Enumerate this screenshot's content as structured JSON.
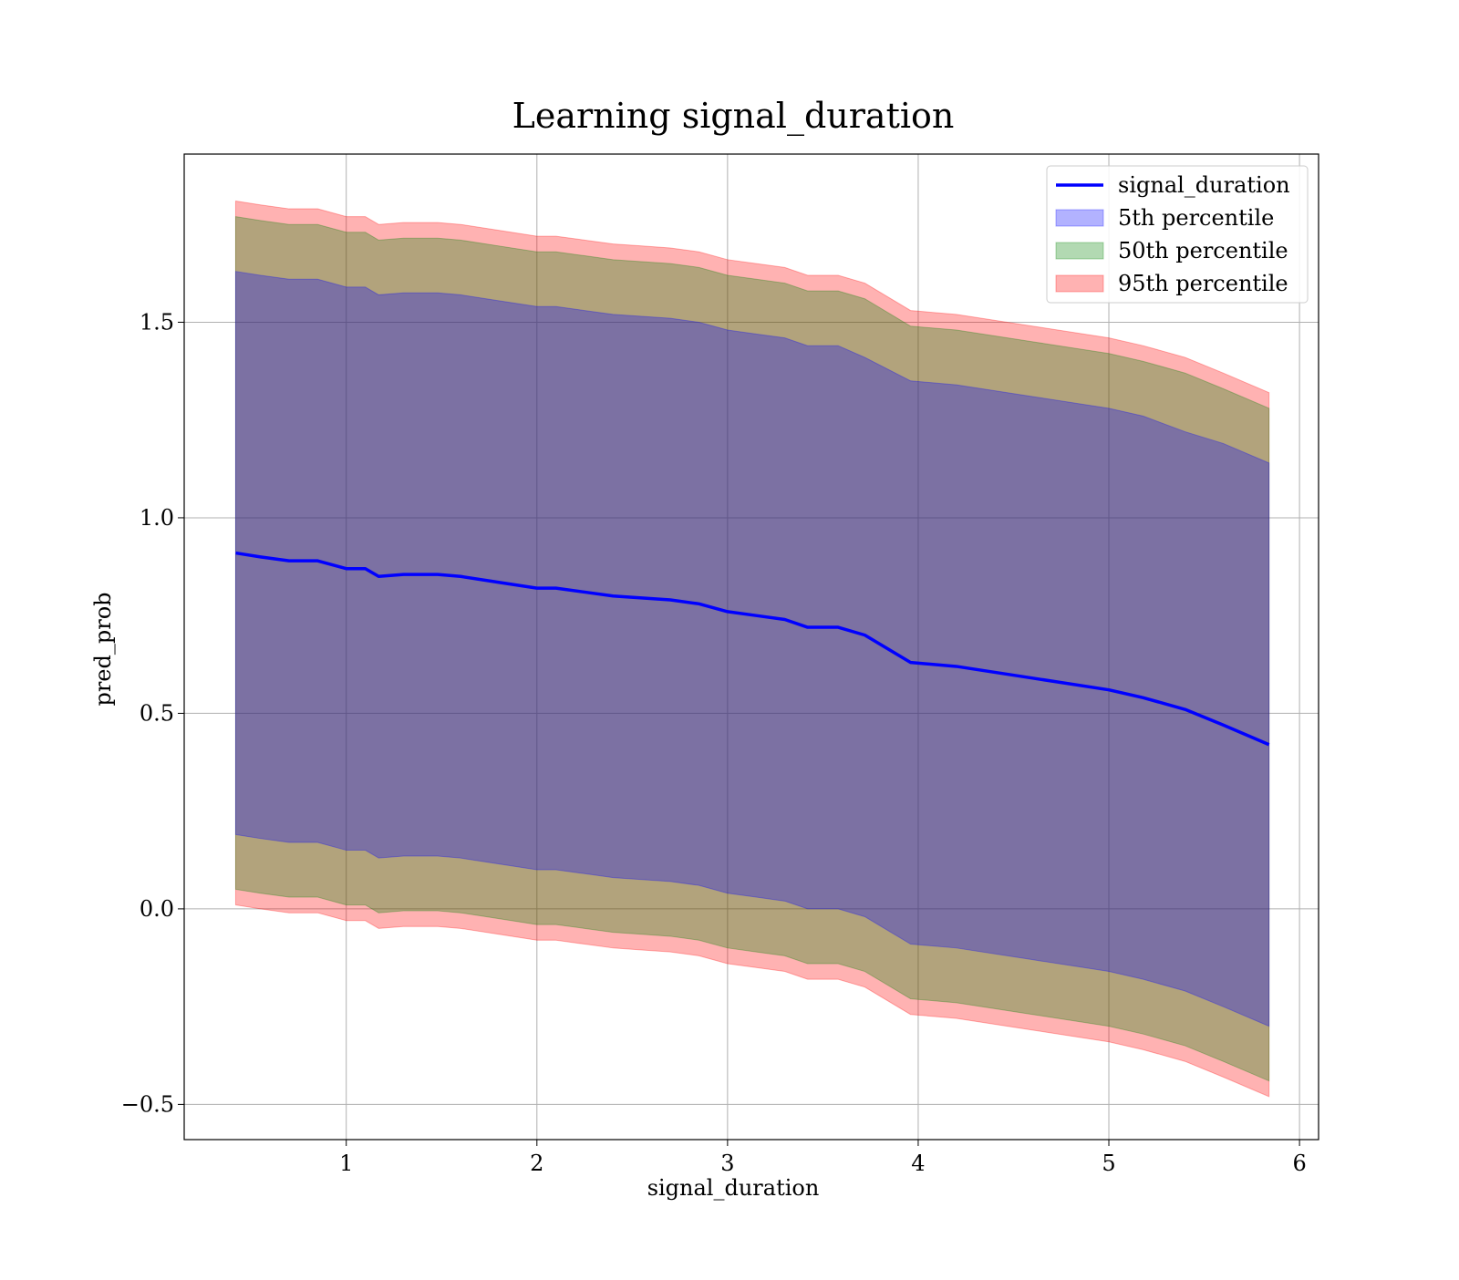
{
  "chart_data": {
    "type": "area",
    "title": "Learning signal_duration",
    "xlabel": "signal_duration",
    "ylabel": "pred_prob",
    "xlim": [
      0.15,
      6.1
    ],
    "ylim": [
      -0.59,
      1.93
    ],
    "xticks": [
      1,
      2,
      3,
      4,
      5,
      6
    ],
    "xtick_labels": [
      "1",
      "2",
      "3",
      "4",
      "5",
      "6"
    ],
    "yticks": [
      -0.5,
      0.0,
      0.5,
      1.0,
      1.5
    ],
    "ytick_labels": [
      "−0.5",
      "0.0",
      "0.5",
      "1.0",
      "1.5"
    ],
    "grid": true,
    "legend_position": "top-right",
    "line": {
      "name": "signal_duration",
      "color": "#0000ff",
      "x": [
        0.42,
        0.55,
        0.7,
        0.85,
        1.0,
        1.1,
        1.17,
        1.3,
        1.48,
        1.6,
        1.8,
        2.0,
        2.1,
        2.25,
        2.4,
        2.55,
        2.7,
        2.85,
        3.0,
        3.15,
        3.3,
        3.42,
        3.58,
        3.72,
        3.96,
        4.2,
        4.6,
        5.0,
        5.18,
        5.4,
        5.6,
        5.84
      ],
      "y": [
        0.91,
        0.9,
        0.89,
        0.89,
        0.87,
        0.87,
        0.85,
        0.855,
        0.855,
        0.85,
        0.835,
        0.82,
        0.82,
        0.81,
        0.8,
        0.795,
        0.79,
        0.78,
        0.76,
        0.75,
        0.74,
        0.72,
        0.72,
        0.7,
        0.63,
        0.62,
        0.59,
        0.56,
        0.54,
        0.51,
        0.47,
        0.42
      ]
    },
    "bands": [
      {
        "name": "95th percentile",
        "color": "#ff0000",
        "opacity": 0.3,
        "x": [
          0.42,
          0.55,
          0.7,
          0.85,
          1.0,
          1.1,
          1.17,
          1.3,
          1.48,
          1.6,
          1.8,
          2.0,
          2.1,
          2.25,
          2.4,
          2.55,
          2.7,
          2.85,
          3.0,
          3.15,
          3.3,
          3.42,
          3.58,
          3.72,
          3.96,
          4.2,
          4.6,
          5.0,
          5.18,
          5.4,
          5.6,
          5.84
        ],
        "upper": [
          1.81,
          1.8,
          1.79,
          1.79,
          1.77,
          1.77,
          1.75,
          1.755,
          1.755,
          1.75,
          1.735,
          1.72,
          1.72,
          1.71,
          1.7,
          1.695,
          1.69,
          1.68,
          1.66,
          1.65,
          1.64,
          1.62,
          1.62,
          1.6,
          1.53,
          1.52,
          1.49,
          1.46,
          1.44,
          1.41,
          1.37,
          1.32
        ],
        "lower": [
          0.01,
          0.0,
          -0.01,
          -0.01,
          -0.03,
          -0.03,
          -0.05,
          -0.045,
          -0.045,
          -0.05,
          -0.065,
          -0.08,
          -0.08,
          -0.09,
          -0.1,
          -0.105,
          -0.11,
          -0.12,
          -0.14,
          -0.15,
          -0.16,
          -0.18,
          -0.18,
          -0.2,
          -0.27,
          -0.28,
          -0.31,
          -0.34,
          -0.36,
          -0.39,
          -0.43,
          -0.48
        ]
      },
      {
        "name": "50th percentile",
        "color": "#008000",
        "opacity": 0.3,
        "x": [
          0.42,
          0.55,
          0.7,
          0.85,
          1.0,
          1.1,
          1.17,
          1.3,
          1.48,
          1.6,
          1.8,
          2.0,
          2.1,
          2.25,
          2.4,
          2.55,
          2.7,
          2.85,
          3.0,
          3.15,
          3.3,
          3.42,
          3.58,
          3.72,
          3.96,
          4.2,
          4.6,
          5.0,
          5.18,
          5.4,
          5.6,
          5.84
        ],
        "upper": [
          1.77,
          1.76,
          1.75,
          1.75,
          1.73,
          1.73,
          1.71,
          1.715,
          1.715,
          1.71,
          1.695,
          1.68,
          1.68,
          1.67,
          1.66,
          1.655,
          1.65,
          1.64,
          1.62,
          1.61,
          1.6,
          1.58,
          1.58,
          1.56,
          1.49,
          1.48,
          1.45,
          1.42,
          1.4,
          1.37,
          1.33,
          1.28
        ],
        "lower": [
          0.05,
          0.04,
          0.03,
          0.03,
          0.01,
          0.01,
          -0.01,
          -0.005,
          -0.005,
          -0.01,
          -0.025,
          -0.04,
          -0.04,
          -0.05,
          -0.06,
          -0.065,
          -0.07,
          -0.08,
          -0.1,
          -0.11,
          -0.12,
          -0.14,
          -0.14,
          -0.16,
          -0.23,
          -0.24,
          -0.27,
          -0.3,
          -0.32,
          -0.35,
          -0.39,
          -0.44
        ]
      },
      {
        "name": "5th percentile",
        "color": "#0000ff",
        "opacity": 0.3,
        "x": [
          0.42,
          0.55,
          0.7,
          0.85,
          1.0,
          1.1,
          1.17,
          1.3,
          1.48,
          1.6,
          1.8,
          2.0,
          2.1,
          2.25,
          2.4,
          2.55,
          2.7,
          2.85,
          3.0,
          3.15,
          3.3,
          3.42,
          3.58,
          3.72,
          3.96,
          4.2,
          4.6,
          5.0,
          5.18,
          5.4,
          5.6,
          5.84
        ],
        "upper": [
          1.63,
          1.62,
          1.61,
          1.61,
          1.59,
          1.59,
          1.57,
          1.575,
          1.575,
          1.57,
          1.555,
          1.54,
          1.54,
          1.53,
          1.52,
          1.515,
          1.51,
          1.5,
          1.48,
          1.47,
          1.46,
          1.44,
          1.44,
          1.41,
          1.35,
          1.34,
          1.31,
          1.28,
          1.26,
          1.22,
          1.19,
          1.14
        ],
        "lower": [
          0.19,
          0.18,
          0.17,
          0.17,
          0.15,
          0.15,
          0.13,
          0.135,
          0.135,
          0.13,
          0.115,
          0.1,
          0.1,
          0.09,
          0.08,
          0.075,
          0.07,
          0.06,
          0.04,
          0.03,
          0.02,
          0.0,
          0.0,
          -0.02,
          -0.09,
          -0.1,
          -0.13,
          -0.16,
          -0.18,
          -0.21,
          -0.25,
          -0.3
        ]
      }
    ],
    "legend": [
      {
        "label": "signal_duration",
        "kind": "line",
        "color": "#0000ff"
      },
      {
        "label": "5th percentile",
        "kind": "patch",
        "color": "#0000ff"
      },
      {
        "label": "50th percentile",
        "kind": "patch",
        "color": "#008000"
      },
      {
        "label": "95th percentile",
        "kind": "patch",
        "color": "#ff0000"
      }
    ]
  }
}
